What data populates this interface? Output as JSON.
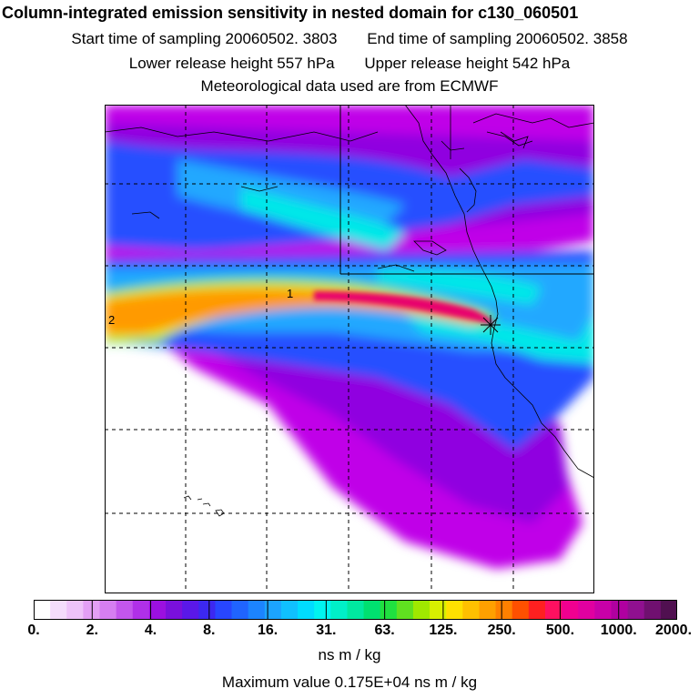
{
  "header": {
    "title": "Column-integrated emission sensitivity in nested domain for c130_060501",
    "start_label": "Start time of sampling 20060502.  3803",
    "end_label": "End time of sampling 20060502.  3858",
    "lower_label": "Lower release height  557 hPa",
    "upper_label": "Upper release height  542 hPa",
    "met_label": "Meteorological data used are from ECMWF"
  },
  "map": {
    "markers": {
      "m1": "1",
      "m2": "2"
    },
    "release_point_icon": "star-icon",
    "plume_colors": {
      "core": "#e8006e",
      "warm": "#ff9a00",
      "yellow": "#e8e800",
      "green": "#40e070",
      "cyan": "#00e8e8",
      "sky": "#20a8ff",
      "blue": "#2850ff",
      "violet": "#9000e0",
      "magenta": "#c000e8",
      "pale": "#e8b0f8"
    }
  },
  "colorbar": {
    "colors": [
      "#ffffff",
      "#f4dcfb",
      "#eec2f9",
      "#e39ff5",
      "#d67ef1",
      "#c356ec",
      "#b030e8",
      "#9b10e0",
      "#7a10dc",
      "#5a18e8",
      "#3c28f0",
      "#2846ff",
      "#2064ff",
      "#1c84ff",
      "#1ca4ff",
      "#10c0ff",
      "#00dcff",
      "#00f4f0",
      "#00f0c8",
      "#00e8a0",
      "#00e070",
      "#20e040",
      "#60e020",
      "#a0e800",
      "#d8f000",
      "#ffe000",
      "#ffc000",
      "#ffa000",
      "#ff8000",
      "#ff5000",
      "#ff2020",
      "#ff1060",
      "#f00090",
      "#e000a0",
      "#c800a8",
      "#b000a0",
      "#901090",
      "#701070",
      "#501050"
    ],
    "ticks": [
      "0.",
      "2.",
      "4.",
      "8.",
      "16.",
      "31.",
      "63.",
      "125.",
      "250.",
      "500.",
      "1000.",
      "2000."
    ],
    "unit": "ns m / kg",
    "max_label": "Maximum value  0.175E+04 ns m / kg"
  }
}
